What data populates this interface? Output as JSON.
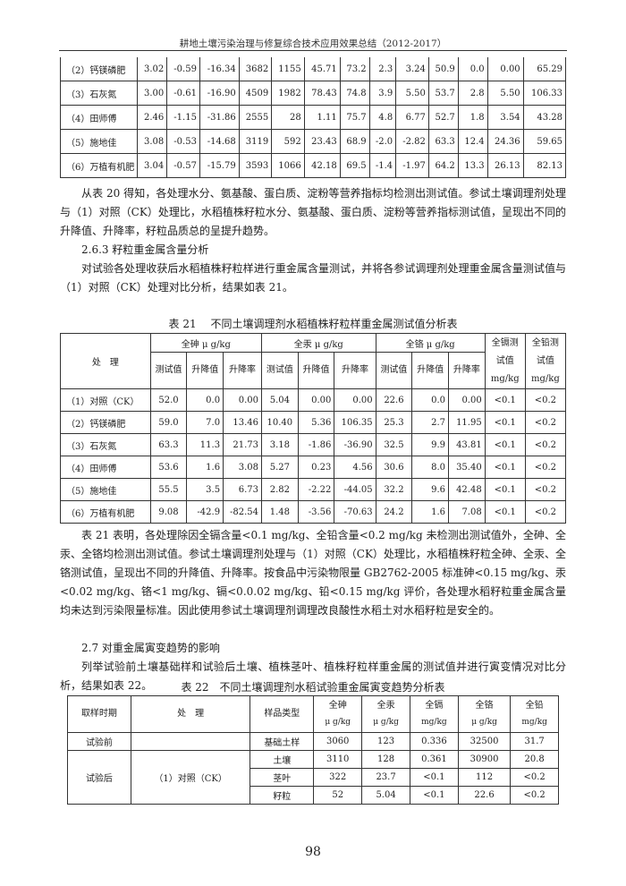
{
  "header": {
    "title": "耕地土壤污染治理与修复综合技术应用效果总结（2012-2017）"
  },
  "table20_rows": [
    [
      "（2）钙镁磷肥",
      "3.02",
      "-0.59",
      "-16.34",
      "3682",
      "1155",
      "45.71",
      "73.2",
      "2.3",
      "3.24",
      "50.9",
      "0.0",
      "0.00",
      "65.29"
    ],
    [
      "（3）石灰氮",
      "3.00",
      "-0.61",
      "-16.90",
      "4509",
      "1982",
      "78.43",
      "74.8",
      "3.9",
      "5.50",
      "53.7",
      "2.8",
      "5.50",
      "106.33"
    ],
    [
      "（4）田师傅",
      "2.46",
      "-1.15",
      "-31.86",
      "2555",
      "28",
      "1.11",
      "75.7",
      "4.8",
      "6.77",
      "52.7",
      "1.8",
      "3.54",
      "43.28"
    ],
    [
      "（5）施地佳",
      "3.08",
      "-0.53",
      "-14.68",
      "3119",
      "592",
      "23.43",
      "68.9",
      "-2.0",
      "-2.82",
      "63.3",
      "12.4",
      "24.36",
      "59.65"
    ],
    [
      "（6）万植有机肥",
      "3.04",
      "-0.57",
      "-15.79",
      "3593",
      "1066",
      "42.18",
      "69.5",
      "-1.4",
      "-1.97",
      "64.2",
      "13.3",
      "26.13",
      "82.13"
    ]
  ],
  "para1": "从表 20 得知，各处理水分、氨基酸、蛋白质、淀粉等营养指标均检测出测试值。参试土壤调理剂处理与（1）对照（CK）处理比，水稻植株籽粒水分、氨基酸、蛋白质、淀粉等营养指标测试值，呈现出不同的升降值、升降率，籽粒品质总的呈提升趋势。",
  "heading_263": "2.6.3 籽粒重金属含量分析",
  "para2": "对试验各处理收获后水稻植株籽粒样进行重金属含量测试，并将各参试调理剂处理重金属含量测试值与（1）对照（CK）处理对比分析，结果如表 21。",
  "table21": {
    "caption": "表 21　 不同土壤调理剂水稻植株籽粒样重金属测试值分析表",
    "h_treatment": "处　理",
    "h_as": "全砷 μ g/kg",
    "h_hg": "全汞 μ g/kg",
    "h_cr": "全铬 μ g/kg",
    "h_cd": "全镉测试值 mg/kg",
    "h_pb": "全铅测试值 mg/kg",
    "h_test": "测试值",
    "h_change": "升降值",
    "h_rate": "升降率",
    "rows": [
      [
        "（1）对照（CK）",
        "52.0",
        "0.0",
        "0.00",
        "5.04",
        "0.00",
        "0.00",
        "22.6",
        "0.0",
        "0.00",
        "<0.1",
        "<0.2"
      ],
      [
        "（2）钙镁磷肥",
        "59.0",
        "7.0",
        "13.46",
        "10.40",
        "5.36",
        "106.35",
        "25.3",
        "2.7",
        "11.95",
        "<0.1",
        "<0.2"
      ],
      [
        "（3）石灰氮",
        "63.3",
        "11.3",
        "21.73",
        "3.18",
        "-1.86",
        "-36.90",
        "32.5",
        "9.9",
        "43.81",
        "<0.1",
        "<0.2"
      ],
      [
        "（4）田师傅",
        "53.6",
        "1.6",
        "3.08",
        "5.27",
        "0.23",
        "4.56",
        "30.6",
        "8.0",
        "35.40",
        "<0.1",
        "<0.2"
      ],
      [
        "（5）施地佳",
        "55.5",
        "3.5",
        "6.73",
        "2.82",
        "-2.22",
        "-44.05",
        "32.2",
        "9.6",
        "42.48",
        "<0.1",
        "<0.2"
      ],
      [
        "（6）万植有机肥",
        "9.08",
        "-42.9",
        "-82.54",
        "1.48",
        "-3.56",
        "-70.63",
        "24.2",
        "1.6",
        "7.08",
        "<0.1",
        "<0.2"
      ]
    ]
  },
  "para3": "表 21 表明，各处理除因全镉含量<0.1 mg/kg、全铅含量<0.2 mg/kg 未检测出测试值外，全砷、全汞、全铬均检测出测试值。参试土壤调理剂处理与（1）对照（CK）处理比，水稻植株籽粒全砷、全汞、全铬测试值，呈现出不同的升降值、升降率。按食品中污染物限量 GB2762-2005 标准砷<0.15 mg/kg、汞<0.02 mg/kg、铬<1 mg/kg、镉<0.0.02 mg/kg、铅<0.15 mg/kg 评价，各处理水稻籽粒重金属含量均未达到污染限量标准。因此使用参试土壤调理剂调理改良酸性水稻土对水稻籽粒是安全的。",
  "heading_27": "2.7 对重金属寅变趋势的影响",
  "para4": "列举试验前土壤基础样和试验后土壤、植株茎叶、植株籽粒样重金属的测试值并进行寅变情况对比分析，结果如表 22。",
  "table22": {
    "caption": "表 22　不同土壤调理剂水稻试验重金属寅变趋势分析表",
    "headers": [
      "取样时期",
      "处　理",
      "样品类型",
      "全砷",
      "全汞",
      "全镉",
      "全铬",
      "全铅"
    ],
    "units": [
      "μ g/kg",
      "μ g/kg",
      "mg/kg",
      "μ g/kg",
      "mg/kg"
    ],
    "before": {
      "period": "试验前",
      "treatment": "",
      "row": [
        "基础土样",
        "3060",
        "123",
        "0.336",
        "32500",
        "31.7"
      ]
    },
    "after": {
      "period": "试验后",
      "treatment": "（1）对照（CK）",
      "rows": [
        [
          "土壤",
          "3110",
          "128",
          "0.361",
          "30900",
          "20.8"
        ],
        [
          "茎叶",
          "322",
          "23.7",
          "<0.1",
          "112",
          "<0.2"
        ],
        [
          "籽粒",
          "52",
          "5.04",
          "<0.1",
          "22.6",
          "<0.2"
        ]
      ]
    }
  },
  "page_number": "98"
}
